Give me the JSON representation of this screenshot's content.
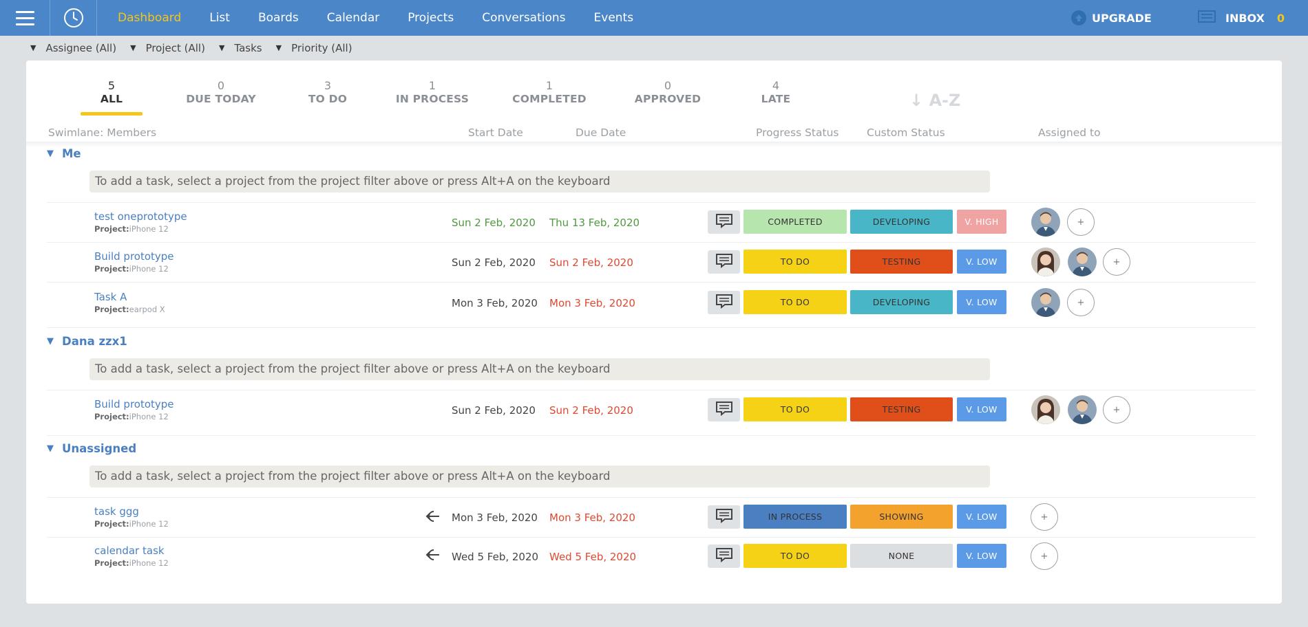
{
  "nav": {
    "items": [
      "Dashboard",
      "List",
      "Boards",
      "Calendar",
      "Projects",
      "Conversations",
      "Events"
    ],
    "upgrade": "UPGRADE",
    "inbox": "INBOX",
    "inbox_count": "0"
  },
  "filters": [
    "Assignee (All)",
    "Project (All)",
    "Tasks",
    "Priority (All)"
  ],
  "tabs": [
    {
      "num": "5",
      "label": "ALL"
    },
    {
      "num": "0",
      "label": "DUE TODAY"
    },
    {
      "num": "3",
      "label": "TO DO"
    },
    {
      "num": "1",
      "label": "IN PROCESS"
    },
    {
      "num": "1",
      "label": "COMPLETED"
    },
    {
      "num": "0",
      "label": "APPROVED"
    },
    {
      "num": "4",
      "label": "LATE"
    }
  ],
  "sort_label": "A-Z",
  "columns": {
    "swimlane": "Swimlane: Members",
    "start": "Start Date",
    "due": "Due Date",
    "progress": "Progress Status",
    "custom": "Custom Status",
    "assigned": "Assigned to"
  },
  "hint": "To add a task, select a project from the project filter above or press Alt+A on the keyboard",
  "project_prefix": "Project:",
  "groups": [
    {
      "title": "Me",
      "tasks": [
        {
          "name": "test oneprototype",
          "project": "iPhone 12",
          "start": "Sun 2 Feb, 2020",
          "due": "Thu 13 Feb, 2020",
          "progress": "COMPLETED",
          "custom": "DEVELOPING",
          "priority": "V. HIGH"
        },
        {
          "name": "Build prototype",
          "project": "iPhone 12",
          "start": "Sun 2 Feb, 2020",
          "due": "Sun 2 Feb, 2020",
          "progress": "TO DO",
          "custom": "TESTING",
          "priority": "V. LOW"
        },
        {
          "name": "Task A",
          "project": "earpod X",
          "start": "Mon 3 Feb, 2020",
          "due": "Mon 3 Feb, 2020",
          "progress": "TO DO",
          "custom": "DEVELOPING",
          "priority": "V. LOW"
        }
      ]
    },
    {
      "title": "Dana zzx1",
      "tasks": [
        {
          "name": "Build prototype",
          "project": "iPhone 12",
          "start": "Sun 2 Feb, 2020",
          "due": "Sun 2 Feb, 2020",
          "progress": "TO DO",
          "custom": "TESTING",
          "priority": "V. LOW"
        }
      ]
    },
    {
      "title": "Unassigned",
      "tasks": [
        {
          "name": "task ggg",
          "project": "iPhone 12",
          "start": "Mon 3 Feb, 2020",
          "due": "Mon 3 Feb, 2020",
          "progress": "IN PROCESS",
          "custom": "SHOWING",
          "priority": "V. LOW"
        },
        {
          "name": "calendar task",
          "project": "iPhone 12",
          "start": "Wed 5 Feb, 2020",
          "due": "Wed 5 Feb, 2020",
          "progress": "TO DO",
          "custom": "NONE",
          "priority": "V. LOW"
        }
      ]
    }
  ],
  "colors": {
    "topbar": "#4a86c8",
    "accent": "#f5c518",
    "completed": "#b7e5ae",
    "todo": "#f5d216",
    "inprocess": "#4a7fc1",
    "developing": "#48b6c6",
    "testing": "#e04f1a",
    "showing": "#f4a22e",
    "none": "#dcdfe1",
    "vhigh": "#f0a3a3",
    "vlow": "#5a9ae6"
  }
}
